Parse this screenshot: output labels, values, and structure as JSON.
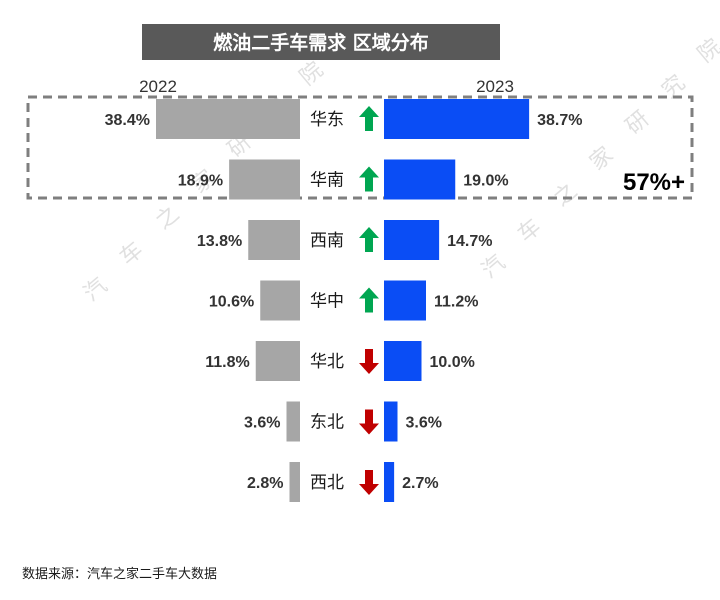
{
  "chart_data": {
    "type": "bar",
    "title": "燃油二手车需求 区域分布",
    "categories": [
      "华东",
      "华南",
      "西南",
      "华中",
      "华北",
      "东北",
      "西北"
    ],
    "series": [
      {
        "name": "2022",
        "values": [
          38.4,
          18.9,
          13.8,
          10.6,
          11.8,
          3.6,
          2.8
        ],
        "labels": [
          "38.4%",
          "18.9%",
          "13.8%",
          "10.6%",
          "11.8%",
          "3.6%",
          "2.8%"
        ]
      },
      {
        "name": "2023",
        "values": [
          38.7,
          19.0,
          14.7,
          11.2,
          10.0,
          3.6,
          2.7
        ],
        "labels": [
          "38.7%",
          "19.0%",
          "14.7%",
          "11.2%",
          "10.0%",
          "3.6%",
          "2.7%"
        ]
      }
    ],
    "trend": [
      "up",
      "up",
      "up",
      "up",
      "down",
      "down",
      "down"
    ],
    "highlight": {
      "label": "57%+",
      "covers": [
        "华东",
        "华南"
      ]
    },
    "colors": {
      "2022": "#a6a6a6",
      "2023": "#0a4df5",
      "up": "#00a651",
      "down": "#c00000",
      "title_bg": "#595959"
    },
    "xlabel": "",
    "ylabel": ""
  },
  "source": "数据来源：汽车之家二手车大数据",
  "watermark": "汽车之家研究院"
}
